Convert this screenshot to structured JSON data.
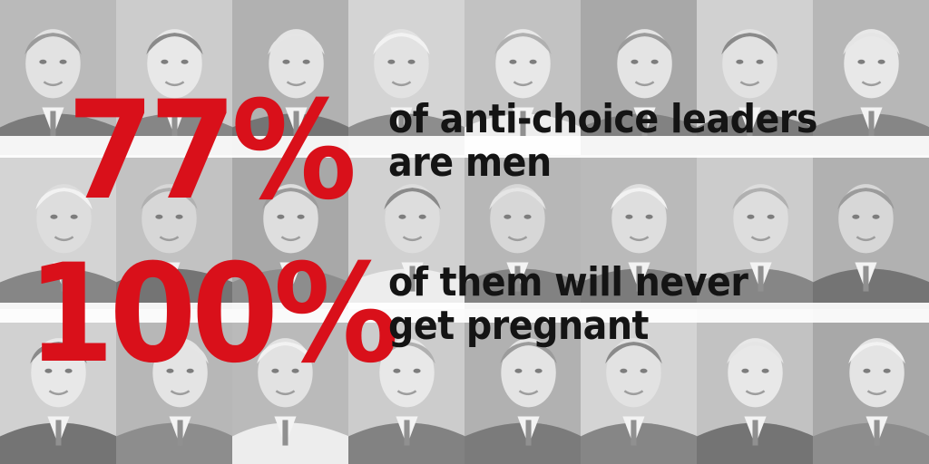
{
  "colors": {
    "accent": "#d9101a",
    "text": "#141414",
    "background": "#e6e6e6"
  },
  "rows": [
    {
      "stat": "77%",
      "caption": [
        "of anti-choice leaders",
        "are men"
      ]
    },
    {
      "stat": "100%",
      "caption": [
        "of them will never",
        "get pregnant"
      ]
    }
  ],
  "background_portraits": {
    "count": 24,
    "description_icon": "portrait-photo"
  }
}
